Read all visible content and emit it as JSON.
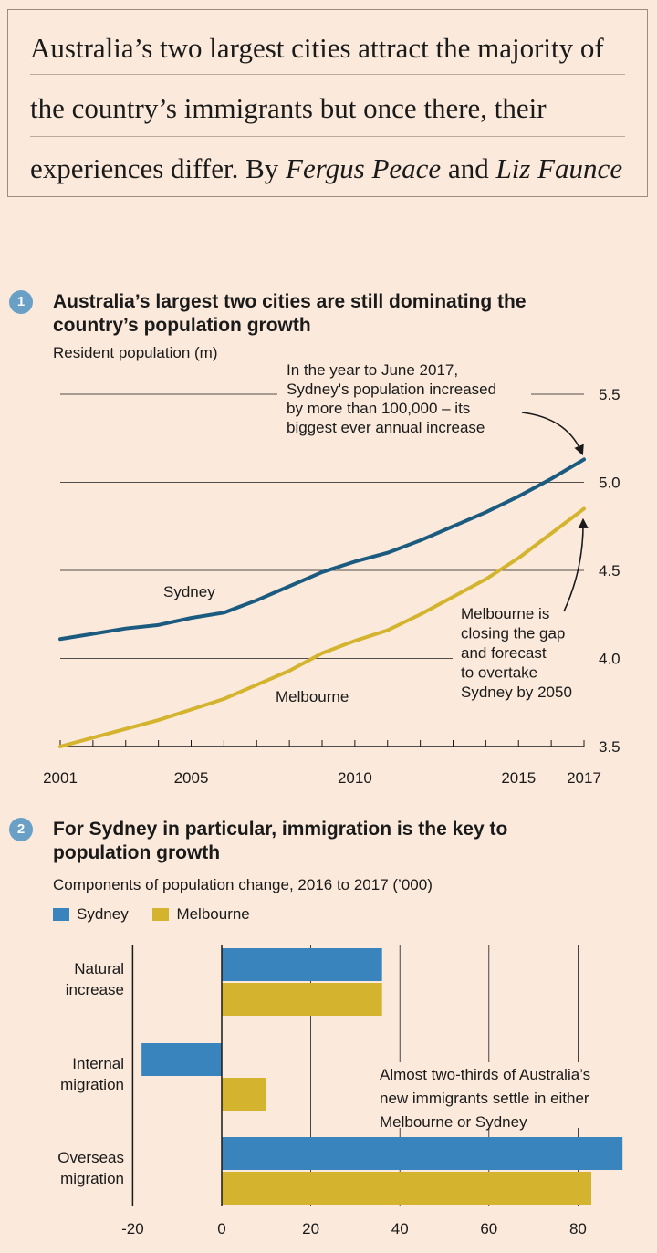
{
  "intro": {
    "line1": "Australia’s two largest cities attract the majority of",
    "line2": "the country’s immigrants but once there, their",
    "line3_prefix": "experiences differ. By ",
    "author1": "Fergus Peace",
    "and": " and ",
    "author2": "Liz Faunce"
  },
  "colors": {
    "background": "#fbeadb",
    "sydney_line": "#1c5b80",
    "melbourne": "#d4b42f",
    "sydney_bar": "#3a84bd",
    "badge": "#6a9fc6"
  },
  "section1": {
    "badge": "1",
    "title_line1": "Australia’s largest two cities are still dominating the",
    "title_line2": "country’s population growth",
    "subtitle": "Resident population (m)"
  },
  "section2": {
    "badge": "2",
    "title_line1": "For Sydney in particular, immigration is the key to",
    "title_line2": "population growth",
    "subtitle": "Components of population change, 2016 to 2017 (’000)"
  },
  "chart_data": [
    {
      "type": "line",
      "title": "Australia’s largest two cities are still dominating the country’s population growth",
      "ylabel": "Resident population (m)",
      "x": [
        2001,
        2002,
        2003,
        2004,
        2005,
        2006,
        2007,
        2008,
        2009,
        2010,
        2011,
        2012,
        2013,
        2014,
        2015,
        2016,
        2017
      ],
      "xticks": [
        2001,
        2005,
        2010,
        2015,
        2017
      ],
      "ylim": [
        3.5,
        5.5
      ],
      "yticks": [
        3.5,
        4.0,
        4.5,
        5.0,
        5.5
      ],
      "ytick_labels": [
        "3.5",
        "4.0",
        "4.5",
        "5.0",
        "5.5"
      ],
      "grid": true,
      "series": [
        {
          "name": "Sydney",
          "color": "#1c5b80",
          "values": [
            4.11,
            4.14,
            4.17,
            4.19,
            4.23,
            4.26,
            4.33,
            4.41,
            4.49,
            4.55,
            4.6,
            4.67,
            4.75,
            4.83,
            4.92,
            5.02,
            5.13
          ]
        },
        {
          "name": "Melbourne",
          "color": "#d4b42f",
          "values": [
            3.5,
            3.55,
            3.6,
            3.65,
            3.71,
            3.77,
            3.85,
            3.93,
            4.03,
            4.1,
            4.16,
            4.25,
            4.35,
            4.45,
            4.57,
            4.71,
            4.85
          ]
        }
      ],
      "annotations": [
        {
          "lines": [
            "In the year to June 2017,",
            "Sydney's population increased",
            "by more than 100,000 – its",
            "biggest ever annual increase"
          ]
        },
        {
          "lines": [
            "Melbourne is",
            "closing the gap",
            "and forecast",
            "to overtake",
            "Sydney by 2050"
          ]
        }
      ]
    },
    {
      "type": "bar",
      "orientation": "horizontal",
      "title": "For Sydney in particular, immigration is the key to population growth",
      "subtitle": "Components of population change, 2016 to 2017 (’000)",
      "categories": [
        [
          "Natural",
          "increase"
        ],
        [
          "Internal",
          "migration"
        ],
        [
          "Overseas",
          "migration"
        ]
      ],
      "xlim": [
        -20,
        90
      ],
      "xticks": [
        -20,
        0,
        20,
        40,
        60,
        80
      ],
      "legend": "top-left",
      "series": [
        {
          "name": "Sydney",
          "color": "#3a84bd",
          "values": [
            36,
            -18,
            90
          ]
        },
        {
          "name": "Melbourne",
          "color": "#d4b42f",
          "values": [
            36,
            10,
            83
          ]
        }
      ],
      "annotations": [
        {
          "lines": [
            "Almost two-thirds of Australia’s",
            "new immigrants settle in either",
            "Melbourne or Sydney"
          ]
        }
      ]
    }
  ]
}
